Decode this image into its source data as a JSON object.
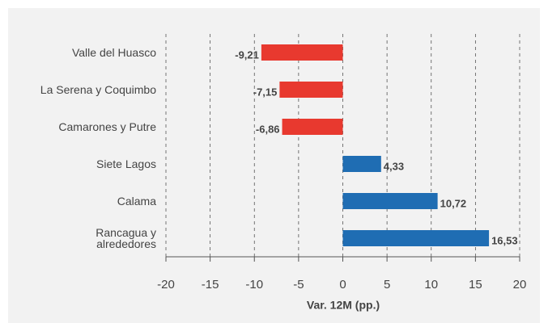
{
  "chart_data": {
    "type": "barh",
    "categories": [
      "Valle del Huasco",
      "La Serena y Coquimbo",
      "Camarones y Putre",
      "Siete Lagos",
      "Calama",
      "Rancagua y alrededores"
    ],
    "values": [
      -9.21,
      -7.15,
      -6.86,
      4.33,
      10.72,
      16.53
    ],
    "value_labels": [
      "-9,21",
      "-7,15",
      "-6,86",
      "4,33",
      "10,72",
      "16,53"
    ],
    "colors": [
      "#e8392f",
      "#e8392f",
      "#e8392f",
      "#1f6db3",
      "#1f6db3",
      "#1f6db3"
    ],
    "xlim": [
      -20,
      20
    ],
    "xticks": [
      -20,
      -15,
      -10,
      -5,
      0,
      5,
      10,
      15,
      20
    ],
    "xlabel": "Var. 12M (pp.)",
    "grid": true
  }
}
